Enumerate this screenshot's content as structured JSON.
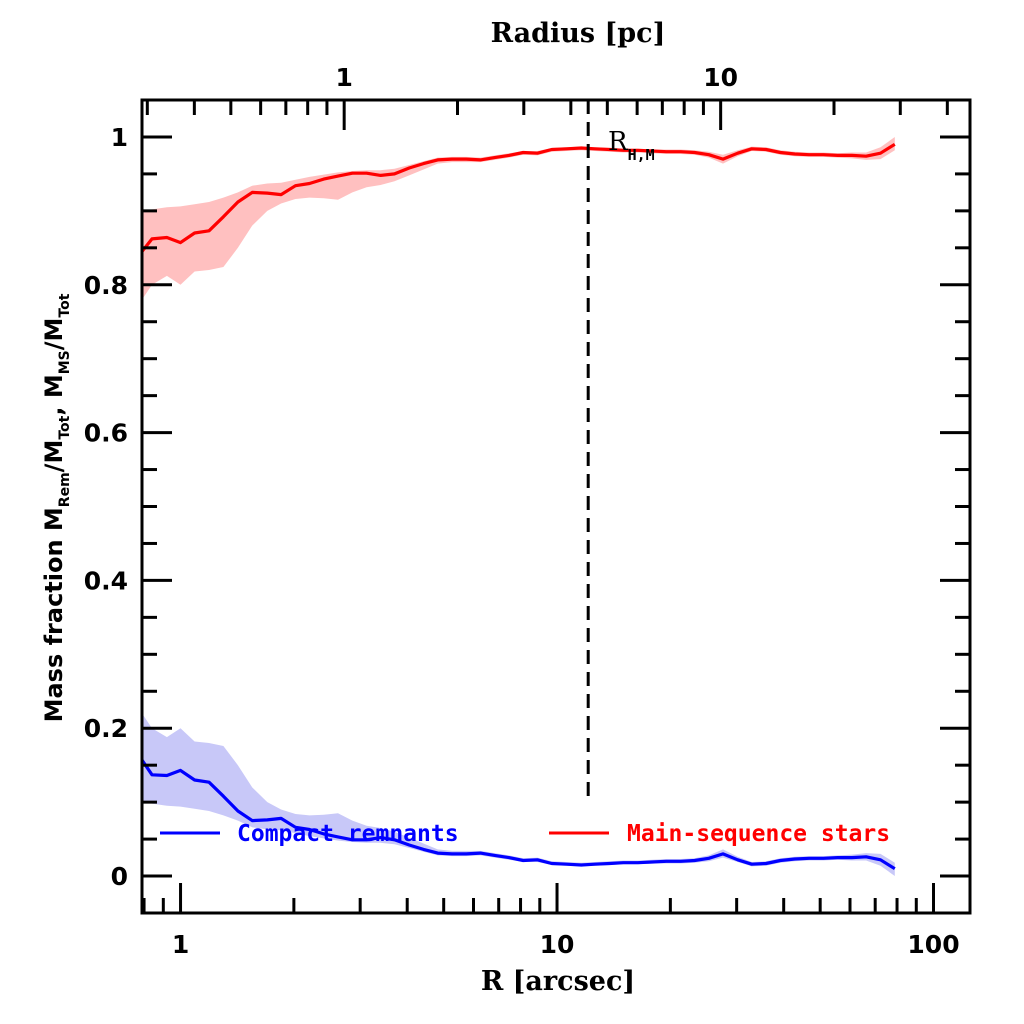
{
  "chart_data": {
    "type": "line",
    "title": "",
    "xlabel": "R [arcsec]",
    "xlabel_top": "Radius [pc]",
    "ylabel_parts": [
      "Mass fraction  M",
      "Rem",
      "/M",
      "Tot",
      ", M",
      "MS",
      "/M",
      "Tot"
    ],
    "xscale": "log",
    "xlim": [
      0.79,
      125
    ],
    "ylim": [
      -0.05,
      1.05
    ],
    "x_ticks": [
      {
        "value": 1,
        "label": "1"
      },
      {
        "value": 10,
        "label": "10"
      },
      {
        "value": 100,
        "label": "100"
      }
    ],
    "top_x_ticks": [
      {
        "arcsec": 2.72,
        "label": "1"
      },
      {
        "arcsec": 27.2,
        "label": "10"
      }
    ],
    "top_axis_pc_per_arcsec": 0.3676,
    "y_ticks": [
      {
        "value": 0,
        "label": "0"
      },
      {
        "value": 0.2,
        "label": "0.2"
      },
      {
        "value": 0.4,
        "label": "0.4"
      },
      {
        "value": 0.6,
        "label": "0.6"
      },
      {
        "value": 0.8,
        "label": "0.8"
      },
      {
        "value": 1,
        "label": "1"
      }
    ],
    "vline": {
      "x": 12.1,
      "label_main": "R",
      "label_sub": "H,M",
      "y_range": [
        0.1,
        1.05
      ]
    },
    "legend_position": "bottom",
    "series": [
      {
        "name": "Compact remnants",
        "color": "#0000ff",
        "band_color": "#c8c8f8",
        "x": [
          0.79,
          0.84,
          0.92,
          1.0,
          1.09,
          1.19,
          1.3,
          1.42,
          1.55,
          1.7,
          1.85,
          2.02,
          2.2,
          2.4,
          2.62,
          2.86,
          3.12,
          3.4,
          3.7,
          4.05,
          4.42,
          4.82,
          5.26,
          5.74,
          6.26,
          6.83,
          7.45,
          8.13,
          8.87,
          9.68,
          10.6,
          11.6,
          12.6,
          13.8,
          15.0,
          16.4,
          17.9,
          19.5,
          21.3,
          23.2,
          25.3,
          27.6,
          30.2,
          32.9,
          35.9,
          39.2,
          42.8,
          46.7,
          51.0,
          55.6,
          60.7,
          66.2,
          72.3,
          78.9
        ],
        "values": [
          0.157,
          0.137,
          0.136,
          0.143,
          0.13,
          0.127,
          0.108,
          0.088,
          0.075,
          0.076,
          0.078,
          0.066,
          0.063,
          0.057,
          0.053,
          0.049,
          0.049,
          0.052,
          0.049,
          0.042,
          0.036,
          0.031,
          0.03,
          0.03,
          0.031,
          0.028,
          0.025,
          0.021,
          0.022,
          0.017,
          0.016,
          0.015,
          0.016,
          0.017,
          0.018,
          0.018,
          0.019,
          0.02,
          0.02,
          0.021,
          0.024,
          0.03,
          0.022,
          0.016,
          0.017,
          0.021,
          0.023,
          0.024,
          0.024,
          0.025,
          0.025,
          0.026,
          0.022,
          0.01
        ],
        "lower": [
          0.1,
          0.098,
          0.095,
          0.094,
          0.091,
          0.088,
          0.082,
          0.075,
          0.066,
          0.063,
          0.062,
          0.058,
          0.054,
          0.051,
          0.048,
          0.046,
          0.045,
          0.045,
          0.043,
          0.038,
          0.033,
          0.028,
          0.027,
          0.027,
          0.028,
          0.025,
          0.022,
          0.019,
          0.019,
          0.015,
          0.014,
          0.013,
          0.014,
          0.015,
          0.016,
          0.016,
          0.017,
          0.017,
          0.017,
          0.018,
          0.02,
          0.025,
          0.019,
          0.013,
          0.014,
          0.018,
          0.02,
          0.021,
          0.021,
          0.022,
          0.021,
          0.021,
          0.014,
          0.0
        ],
        "upper": [
          0.22,
          0.2,
          0.188,
          0.2,
          0.182,
          0.18,
          0.176,
          0.15,
          0.12,
          0.1,
          0.09,
          0.084,
          0.082,
          0.083,
          0.085,
          0.075,
          0.068,
          0.065,
          0.06,
          0.052,
          0.044,
          0.036,
          0.034,
          0.034,
          0.034,
          0.031,
          0.028,
          0.024,
          0.025,
          0.02,
          0.019,
          0.018,
          0.019,
          0.02,
          0.021,
          0.021,
          0.022,
          0.023,
          0.023,
          0.024,
          0.028,
          0.036,
          0.026,
          0.019,
          0.02,
          0.024,
          0.026,
          0.027,
          0.027,
          0.028,
          0.029,
          0.031,
          0.03,
          0.018
        ]
      },
      {
        "name": "Main-sequence stars",
        "color": "#ff0000",
        "band_color": "#ffc0c0",
        "x": [
          0.79,
          0.84,
          0.92,
          1.0,
          1.09,
          1.19,
          1.3,
          1.42,
          1.55,
          1.7,
          1.85,
          2.02,
          2.2,
          2.4,
          2.62,
          2.86,
          3.12,
          3.4,
          3.7,
          4.05,
          4.42,
          4.82,
          5.26,
          5.74,
          6.26,
          6.83,
          7.45,
          8.13,
          8.87,
          9.68,
          10.6,
          11.6,
          12.6,
          13.8,
          15.0,
          16.4,
          17.9,
          19.5,
          21.3,
          23.2,
          25.3,
          27.6,
          30.2,
          32.9,
          35.9,
          39.2,
          42.8,
          46.7,
          51.0,
          55.6,
          60.7,
          66.2,
          72.3,
          78.9
        ],
        "values": [
          0.845,
          0.862,
          0.864,
          0.857,
          0.87,
          0.873,
          0.892,
          0.912,
          0.925,
          0.924,
          0.922,
          0.934,
          0.937,
          0.943,
          0.947,
          0.951,
          0.951,
          0.948,
          0.95,
          0.958,
          0.964,
          0.969,
          0.97,
          0.97,
          0.969,
          0.972,
          0.975,
          0.979,
          0.978,
          0.983,
          0.984,
          0.985,
          0.984,
          0.983,
          0.982,
          0.982,
          0.981,
          0.98,
          0.98,
          0.979,
          0.976,
          0.97,
          0.978,
          0.984,
          0.983,
          0.979,
          0.977,
          0.976,
          0.976,
          0.975,
          0.975,
          0.974,
          0.978,
          0.99
        ],
        "lower": [
          0.78,
          0.8,
          0.812,
          0.8,
          0.818,
          0.82,
          0.824,
          0.85,
          0.88,
          0.9,
          0.91,
          0.916,
          0.918,
          0.917,
          0.915,
          0.925,
          0.932,
          0.935,
          0.94,
          0.948,
          0.956,
          0.964,
          0.966,
          0.966,
          0.966,
          0.969,
          0.972,
          0.976,
          0.975,
          0.98,
          0.981,
          0.982,
          0.981,
          0.98,
          0.979,
          0.979,
          0.978,
          0.977,
          0.977,
          0.976,
          0.972,
          0.964,
          0.974,
          0.981,
          0.98,
          0.976,
          0.974,
          0.973,
          0.973,
          0.972,
          0.971,
          0.969,
          0.97,
          0.982
        ],
        "upper": [
          0.9,
          0.902,
          0.905,
          0.906,
          0.909,
          0.912,
          0.918,
          0.925,
          0.934,
          0.937,
          0.938,
          0.942,
          0.946,
          0.949,
          0.952,
          0.954,
          0.955,
          0.955,
          0.957,
          0.962,
          0.967,
          0.972,
          0.973,
          0.973,
          0.972,
          0.975,
          0.978,
          0.981,
          0.981,
          0.985,
          0.986,
          0.987,
          0.986,
          0.985,
          0.984,
          0.984,
          0.983,
          0.983,
          0.983,
          0.982,
          0.98,
          0.976,
          0.982,
          0.987,
          0.986,
          0.982,
          0.98,
          0.979,
          0.979,
          0.978,
          0.979,
          0.979,
          0.986,
          1.0
        ]
      }
    ]
  }
}
